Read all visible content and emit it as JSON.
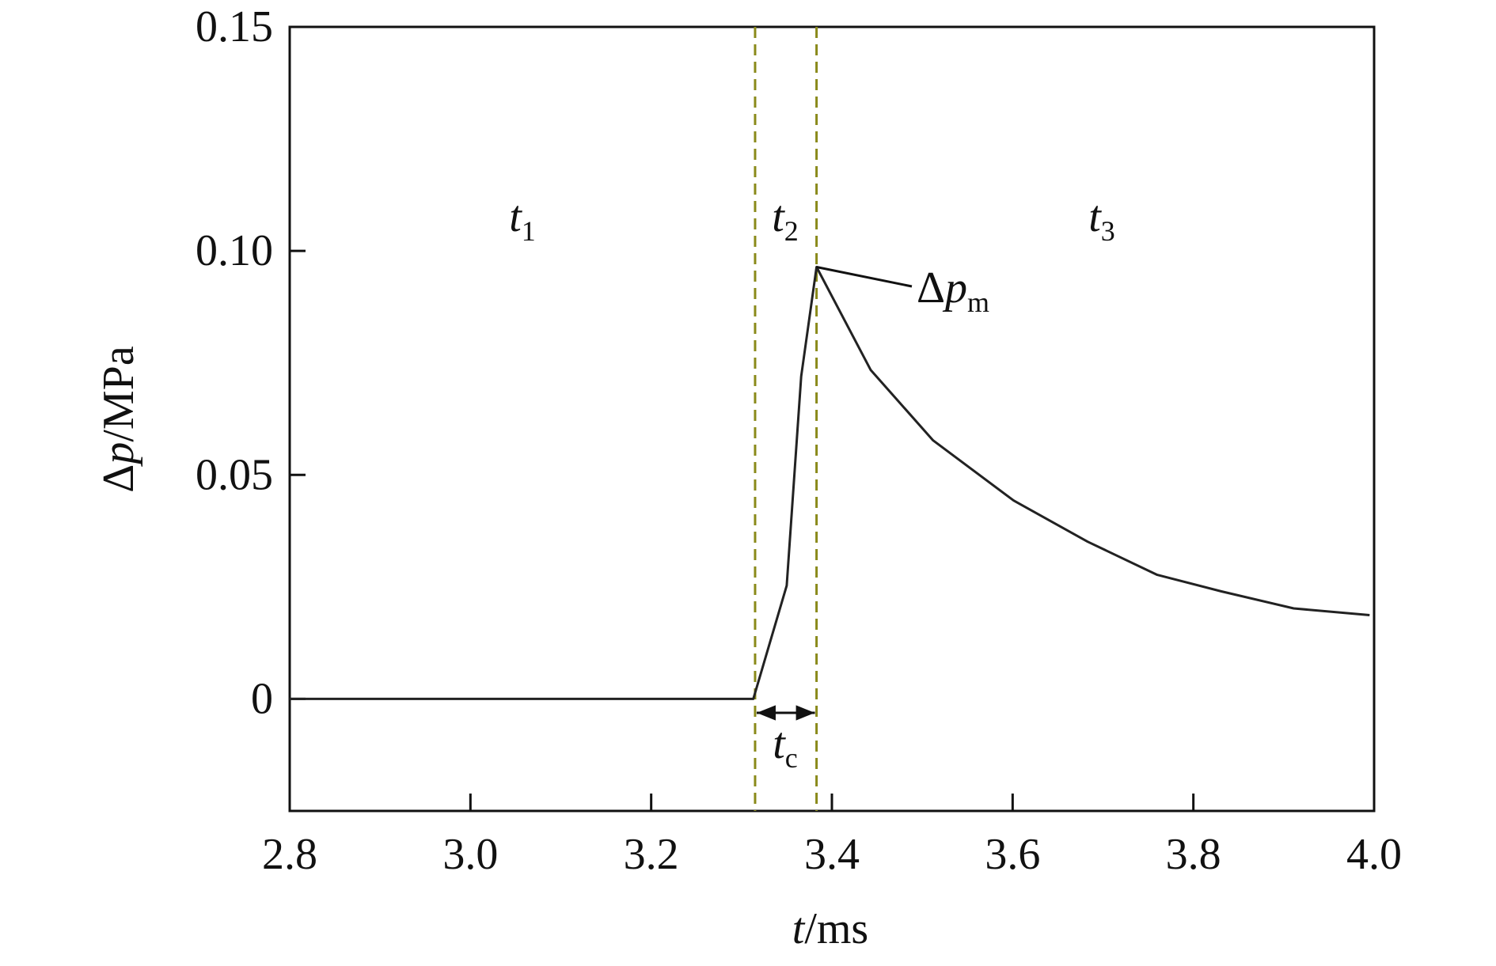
{
  "chart_data": {
    "type": "line",
    "xlabel": {
      "var": "t",
      "unit": "/ms"
    },
    "ylabel": {
      "prefix": "Δ",
      "var": "p",
      "unit": "/MPa"
    },
    "x": [
      2.8,
      3.313,
      3.35,
      3.366,
      3.383,
      3.443,
      3.512,
      3.601,
      3.683,
      3.76,
      3.831,
      3.911,
      3.995
    ],
    "series": [
      {
        "color": "#222222",
        "values": [
          0,
          0,
          0.0253,
          0.072,
          0.0964,
          0.0734,
          0.0577,
          0.0443,
          0.0351,
          0.0277,
          0.024,
          0.0202,
          0.0187
        ]
      }
    ],
    "xlim": [
      2.8,
      4.0
    ],
    "xticks": [
      2.8,
      {
        "value": 3,
        "label": "3.0"
      },
      3.2,
      3.4,
      3.6,
      3.8,
      {
        "value": 4,
        "label": "4.0"
      }
    ],
    "ylim": [
      -0.025,
      0.15
    ],
    "yticks": [
      {
        "value": 0,
        "label": "0"
      },
      0.05,
      {
        "value": 0.1,
        "label": "0.10"
      },
      0.15
    ],
    "vlines": {
      "color": "#8a8a1a",
      "values": [
        3.315,
        3.383
      ]
    },
    "annotations": [
      {
        "text": "t",
        "sub": "1"
      },
      {
        "text": "t",
        "sub": "2"
      },
      {
        "text": "t",
        "sub": "3"
      },
      {
        "text": "t",
        "sub": "c"
      },
      {
        "text": "Δp",
        "sub": "m"
      }
    ]
  }
}
